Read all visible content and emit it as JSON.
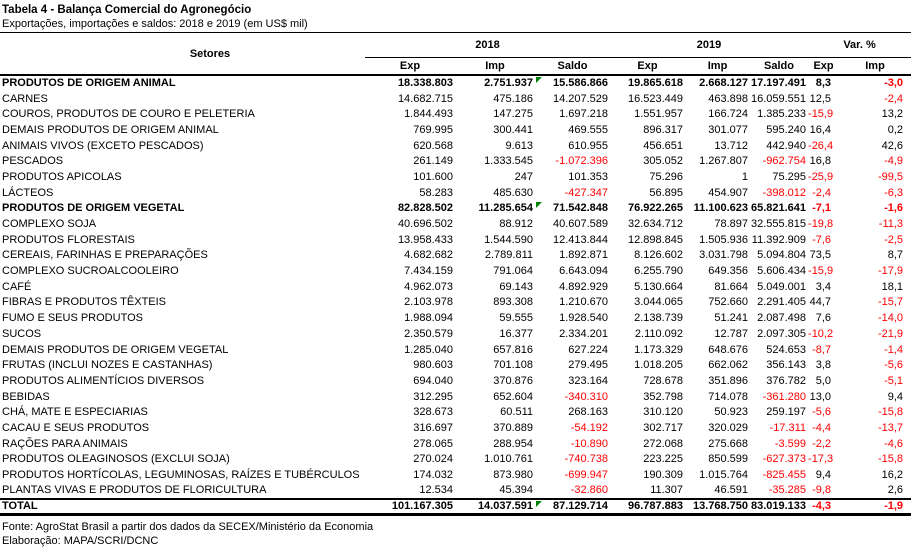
{
  "title": "Tabela 4 - Balança Comercial do Agronegócio",
  "subtitle": "Exportações, importações e saldos: 2018 e 2019 (em US$ mil)",
  "colors": {
    "negative_value": "#ff0000",
    "flag_marker": "#008000",
    "text": "#000000",
    "background": "#ffffff"
  },
  "icons": {
    "flag": "excel-flag-icon"
  },
  "table": {
    "col_group_label": "Setores",
    "year_groups": [
      "2018",
      "2019"
    ],
    "var_group": "Var. %",
    "sub_headers": [
      "Exp",
      "Imp",
      "Saldo",
      "Exp",
      "Imp",
      "Saldo",
      "Exp",
      "Imp"
    ],
    "rows": [
      {
        "label": "PRODUTOS DE ORIGEM ANIMAL",
        "bold": true,
        "flag": true,
        "values": [
          "18.338.803",
          "2.751.937",
          "15.586.866",
          "19.865.618",
          "2.668.127",
          "17.197.491",
          "8,3",
          "-3,0"
        ]
      },
      {
        "label": "CARNES",
        "bold": false,
        "flag": false,
        "values": [
          "14.682.715",
          "475.186",
          "14.207.529",
          "16.523.449",
          "463.898",
          "16.059.551",
          "12,5",
          "-2,4"
        ]
      },
      {
        "label": "COUROS, PRODUTOS DE COURO E PELETERIA",
        "bold": false,
        "flag": false,
        "values": [
          "1.844.493",
          "147.275",
          "1.697.218",
          "1.551.957",
          "166.724",
          "1.385.233",
          "-15,9",
          "13,2"
        ]
      },
      {
        "label": "DEMAIS PRODUTOS DE ORIGEM ANIMAL",
        "bold": false,
        "flag": false,
        "values": [
          "769.995",
          "300.441",
          "469.555",
          "896.317",
          "301.077",
          "595.240",
          "16,4",
          "0,2"
        ]
      },
      {
        "label": "ANIMAIS VIVOS (EXCETO PESCADOS)",
        "bold": false,
        "flag": false,
        "values": [
          "620.568",
          "9.613",
          "610.955",
          "456.651",
          "13.712",
          "442.940",
          "-26,4",
          "42,6"
        ]
      },
      {
        "label": "PESCADOS",
        "bold": false,
        "flag": false,
        "values": [
          "261.149",
          "1.333.545",
          "-1.072.396",
          "305.052",
          "1.267.807",
          "-962.754",
          "16,8",
          "-4,9"
        ]
      },
      {
        "label": "PRODUTOS APICOLAS",
        "bold": false,
        "flag": false,
        "values": [
          "101.600",
          "247",
          "101.353",
          "75.296",
          "1",
          "75.295",
          "-25,9",
          "-99,5"
        ]
      },
      {
        "label": "LÁCTEOS",
        "bold": false,
        "flag": false,
        "values": [
          "58.283",
          "485.630",
          "-427.347",
          "56.895",
          "454.907",
          "-398.012",
          "-2,4",
          "-6,3"
        ]
      },
      {
        "label": "PRODUTOS DE ORIGEM VEGETAL",
        "bold": true,
        "flag": true,
        "values": [
          "82.828.502",
          "11.285.654",
          "71.542.848",
          "76.922.265",
          "11.100.623",
          "65.821.641",
          "-7,1",
          "-1,6"
        ]
      },
      {
        "label": "COMPLEXO SOJA",
        "bold": false,
        "flag": false,
        "values": [
          "40.696.502",
          "88.912",
          "40.607.589",
          "32.634.712",
          "78.897",
          "32.555.815",
          "-19,8",
          "-11,3"
        ]
      },
      {
        "label": "PRODUTOS FLORESTAIS",
        "bold": false,
        "flag": false,
        "values": [
          "13.958.433",
          "1.544.590",
          "12.413.844",
          "12.898.845",
          "1.505.936",
          "11.392.909",
          "-7,6",
          "-2,5"
        ]
      },
      {
        "label": "CEREAIS, FARINHAS E PREPARAÇÕES",
        "bold": false,
        "flag": false,
        "values": [
          "4.682.682",
          "2.789.811",
          "1.892.871",
          "8.126.602",
          "3.031.798",
          "5.094.804",
          "73,5",
          "8,7"
        ]
      },
      {
        "label": "COMPLEXO SUCROALCOOLEIRO",
        "bold": false,
        "flag": false,
        "values": [
          "7.434.159",
          "791.064",
          "6.643.094",
          "6.255.790",
          "649.356",
          "5.606.434",
          "-15,9",
          "-17,9"
        ]
      },
      {
        "label": "CAFÉ",
        "bold": false,
        "flag": false,
        "values": [
          "4.962.073",
          "69.143",
          "4.892.929",
          "5.130.664",
          "81.664",
          "5.049.001",
          "3,4",
          "18,1"
        ]
      },
      {
        "label": "FIBRAS E PRODUTOS TÊXTEIS",
        "bold": false,
        "flag": false,
        "values": [
          "2.103.978",
          "893.308",
          "1.210.670",
          "3.044.065",
          "752.660",
          "2.291.405",
          "44,7",
          "-15,7"
        ]
      },
      {
        "label": "FUMO E SEUS PRODUTOS",
        "bold": false,
        "flag": false,
        "values": [
          "1.988.094",
          "59.555",
          "1.928.540",
          "2.138.739",
          "51.241",
          "2.087.498",
          "7,6",
          "-14,0"
        ]
      },
      {
        "label": "SUCOS",
        "bold": false,
        "flag": false,
        "values": [
          "2.350.579",
          "16.377",
          "2.334.201",
          "2.110.092",
          "12.787",
          "2.097.305",
          "-10,2",
          "-21,9"
        ]
      },
      {
        "label": "DEMAIS PRODUTOS DE ORIGEM VEGETAL",
        "bold": false,
        "flag": false,
        "values": [
          "1.285.040",
          "657.816",
          "627.224",
          "1.173.329",
          "648.676",
          "524.653",
          "-8,7",
          "-1,4"
        ]
      },
      {
        "label": "FRUTAS (INCLUI NOZES E CASTANHAS)",
        "bold": false,
        "flag": false,
        "values": [
          "980.603",
          "701.108",
          "279.495",
          "1.018.205",
          "662.062",
          "356.143",
          "3,8",
          "-5,6"
        ]
      },
      {
        "label": "PRODUTOS ALIMENTÍCIOS DIVERSOS",
        "bold": false,
        "flag": false,
        "values": [
          "694.040",
          "370.876",
          "323.164",
          "728.678",
          "351.896",
          "376.782",
          "5,0",
          "-5,1"
        ]
      },
      {
        "label": "BEBIDAS",
        "bold": false,
        "flag": false,
        "values": [
          "312.295",
          "652.604",
          "-340.310",
          "352.798",
          "714.078",
          "-361.280",
          "13,0",
          "9,4"
        ]
      },
      {
        "label": "CHÁ, MATE E ESPECIARIAS",
        "bold": false,
        "flag": false,
        "values": [
          "328.673",
          "60.511",
          "268.163",
          "310.120",
          "50.923",
          "259.197",
          "-5,6",
          "-15,8"
        ]
      },
      {
        "label": "CACAU E SEUS PRODUTOS",
        "bold": false,
        "flag": false,
        "values": [
          "316.697",
          "370.889",
          "-54.192",
          "302.717",
          "320.029",
          "-17.311",
          "-4,4",
          "-13,7"
        ]
      },
      {
        "label": "RAÇÕES PARA ANIMAIS",
        "bold": false,
        "flag": false,
        "values": [
          "278.065",
          "288.954",
          "-10.890",
          "272.068",
          "275.668",
          "-3.599",
          "-2,2",
          "-4,6"
        ]
      },
      {
        "label": "PRODUTOS OLEAGINOSOS (EXCLUI SOJA)",
        "bold": false,
        "flag": false,
        "values": [
          "270.024",
          "1.010.761",
          "-740.738",
          "223.225",
          "850.599",
          "-627.373",
          "-17,3",
          "-15,8"
        ]
      },
      {
        "label": "PRODUTOS HORTÍCOLAS, LEGUMINOSAS, RAÍZES E TUBÉRCULOS",
        "bold": false,
        "flag": false,
        "values": [
          "174.032",
          "873.980",
          "-699.947",
          "190.309",
          "1.015.764",
          "-825.455",
          "9,4",
          "16,2"
        ]
      },
      {
        "label": "PLANTAS VIVAS E PRODUTOS DE FLORICULTURA",
        "bold": false,
        "flag": false,
        "values": [
          "12.534",
          "45.394",
          "-32.860",
          "11.307",
          "46.591",
          "-35.285",
          "-9,8",
          "2,6"
        ]
      },
      {
        "label": "TOTAL",
        "bold": true,
        "flag": true,
        "total": true,
        "values": [
          "101.167.305",
          "14.037.591",
          "87.129.714",
          "96.787.883",
          "13.768.750",
          "83.019.133",
          "-4,3",
          "-1,9"
        ]
      }
    ]
  },
  "footer": {
    "source": "Fonte: AgroStat Brasil a partir dos dados da SECEX/Ministério da Economia",
    "elaboration": "Elaboração: MAPA/SCRI/DCNC"
  }
}
